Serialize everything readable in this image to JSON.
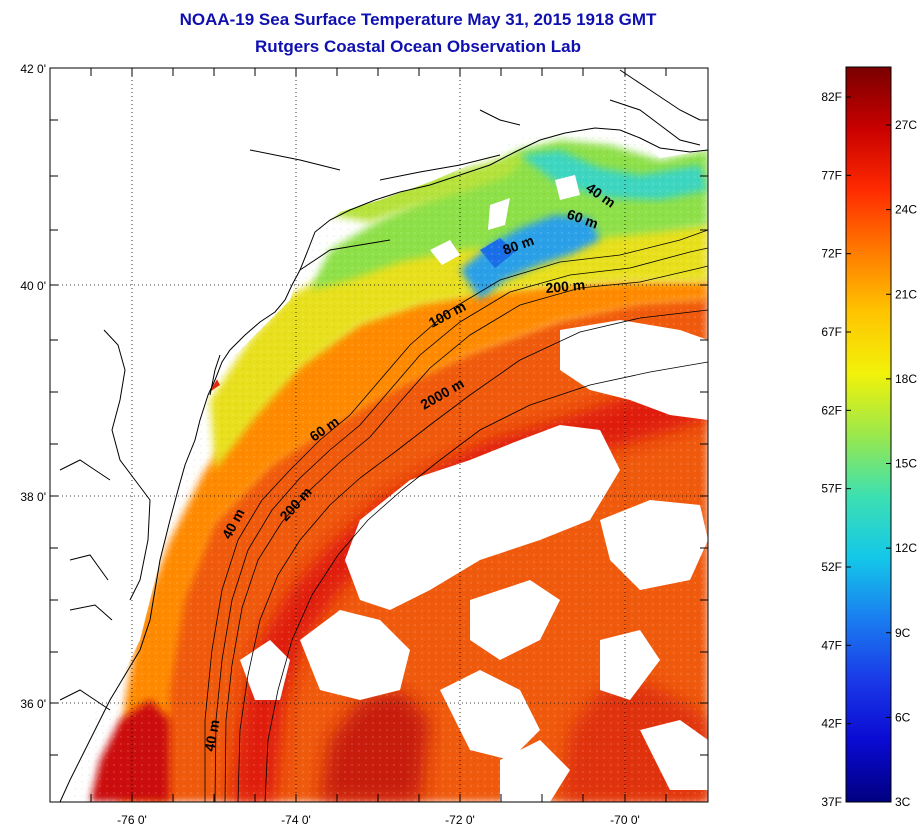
{
  "title": "NOAA-19 Sea Surface Temperature May 31, 2015 1918 GMT",
  "subtitle": "Rutgers Coastal Ocean Observation Lab",
  "lat_ticks": [
    "42 0'",
    "40 0'",
    "38 0'",
    "36 0'"
  ],
  "lon_ticks": [
    "-76 0'",
    "-74 0'",
    "-72 0'",
    "-70 0'"
  ],
  "contour_labels": [
    "40 m",
    "60 m",
    "80 m",
    "100 m",
    "200 m",
    "2000 m",
    "60 m",
    "200 m",
    "40 m",
    "40 m"
  ],
  "colorbar": {
    "fahrenheit_ticks": [
      "82F",
      "77F",
      "72F",
      "67F",
      "62F",
      "57F",
      "52F",
      "47F",
      "42F",
      "37F"
    ],
    "celsius_ticks": [
      "27C",
      "24C",
      "21C",
      "18C",
      "15C",
      "12C",
      "9C",
      "6C",
      "3C"
    ],
    "colors": [
      "#7a0000",
      "#c80000",
      "#ff2a00",
      "#ff7a00",
      "#ffc400",
      "#f2f20a",
      "#9be84a",
      "#3ee0b0",
      "#14c8e8",
      "#1a7ef0",
      "#1a3ae8",
      "#0a0ad2",
      "#000080"
    ]
  },
  "colors": {
    "title": "#1010b0",
    "land": "#ffffff",
    "cloud": "#ffffff",
    "coastline": "#000000"
  }
}
